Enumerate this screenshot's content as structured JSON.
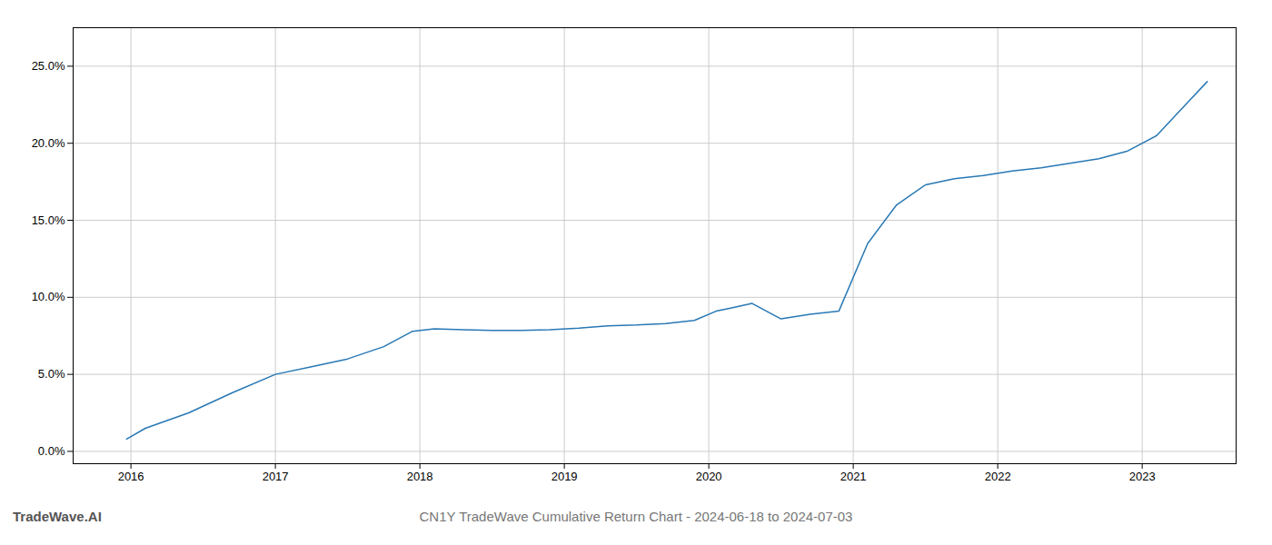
{
  "chart_data": {
    "type": "line",
    "title": "CN1Y TradeWave Cumulative Return Chart - 2024-06-18 to 2024-07-03",
    "annotations": [
      "TradeWave.AI"
    ],
    "x": [
      2015.97,
      2016.1,
      2016.4,
      2016.7,
      2017.0,
      2017.25,
      2017.5,
      2017.75,
      2017.95,
      2018.1,
      2018.3,
      2018.5,
      2018.7,
      2018.9,
      2019.1,
      2019.3,
      2019.5,
      2019.7,
      2019.9,
      2020.05,
      2020.15,
      2020.3,
      2020.5,
      2020.7,
      2020.9,
      2021.1,
      2021.3,
      2021.5,
      2021.7,
      2021.9,
      2022.1,
      2022.3,
      2022.5,
      2022.7,
      2022.9,
      2023.1,
      2023.3,
      2023.45
    ],
    "values": [
      0.008,
      0.015,
      0.025,
      0.038,
      0.05,
      0.055,
      0.06,
      0.068,
      0.078,
      0.0795,
      0.079,
      0.0785,
      0.0785,
      0.079,
      0.08,
      0.0815,
      0.082,
      0.083,
      0.085,
      0.091,
      0.093,
      0.096,
      0.086,
      0.089,
      0.091,
      0.135,
      0.16,
      0.173,
      0.177,
      0.179,
      0.182,
      0.184,
      0.187,
      0.19,
      0.195,
      0.205,
      0.225,
      0.24
    ],
    "color": "#2878b5",
    "xlim": [
      2015.6,
      2023.65
    ],
    "ylim": [
      -0.008,
      0.275
    ],
    "xticks": [
      2016,
      2017,
      2018,
      2019,
      2020,
      2021,
      2022,
      2023
    ],
    "yticks": [
      {
        "value": 0.0,
        "label": "0.0%"
      },
      {
        "value": 0.05,
        "label": "5.0%"
      },
      {
        "value": 0.1,
        "label": "10.0%"
      },
      {
        "value": 0.15,
        "label": "15.0%"
      },
      {
        "value": 0.2,
        "label": "20.0%"
      },
      {
        "value": 0.25,
        "label": "25.0%"
      }
    ],
    "grid": true
  }
}
